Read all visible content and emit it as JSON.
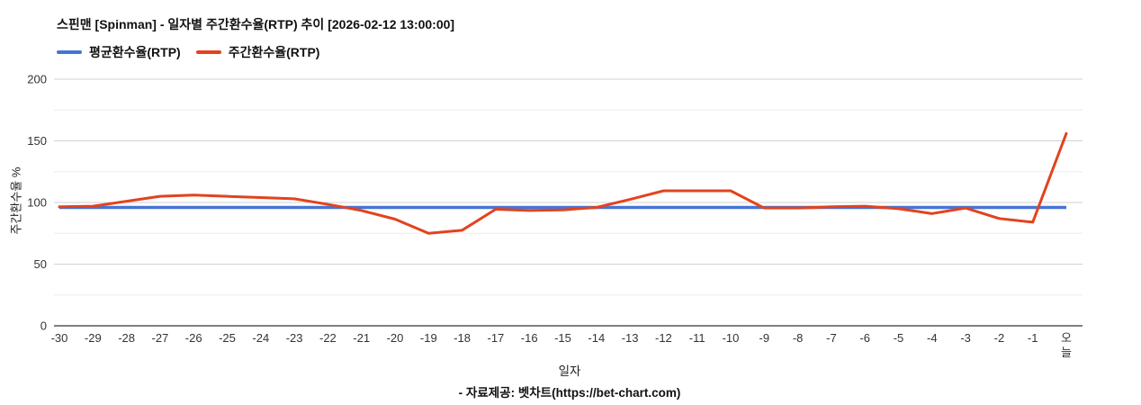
{
  "title": "스핀맨 [Spinman] - 일자별 주간환수율(RTP) 추이 [2026-02-12 13:00:00]",
  "legend": [
    {
      "label": "평균환수율(RTP)",
      "color": "#4575d4"
    },
    {
      "label": "주간환수율(RTP)",
      "color": "#e2431e"
    }
  ],
  "y_axis_title": "주간환수율 %",
  "x_axis_title": "일자",
  "footer": "- 자료제공: 벳차트(https://bet-chart.com)",
  "colors": {
    "average_line": "#4575d4",
    "weekly_line": "#e2431e",
    "grid_major": "#d2d2d2",
    "grid_minor": "#ececec",
    "axis_line": "#333333",
    "tick_text": "#333333"
  },
  "chart_data": {
    "type": "line",
    "title": "스핀맨 [Spinman] - 일자별 주간환수율(RTP) 추이 [2026-02-12 13:00:00]",
    "xlabel": "일자",
    "ylabel": "주간환수율 %",
    "ylim": [
      0,
      200
    ],
    "yticks_major": [
      0,
      50,
      100,
      150,
      200
    ],
    "yticks_minor": [
      25,
      75,
      125,
      175
    ],
    "grid": true,
    "legend_position": "top-left",
    "categories": [
      "-30",
      "-29",
      "-28",
      "-27",
      "-26",
      "-25",
      "-24",
      "-23",
      "-22",
      "-21",
      "-20",
      "-19",
      "-18",
      "-17",
      "-16",
      "-15",
      "-14",
      "-13",
      "-12",
      "-11",
      "-10",
      "-9",
      "-8",
      "-7",
      "-6",
      "-5",
      "-4",
      "-3",
      "-2",
      "-1",
      "오늘"
    ],
    "series": [
      {
        "name": "평균환수율(RTP)",
        "color": "#4575d4",
        "values": [
          96,
          96,
          96,
          96,
          96,
          96,
          96,
          96,
          96,
          96,
          96,
          96,
          96,
          96,
          96,
          96,
          96,
          96,
          96,
          96,
          96,
          96,
          96,
          96,
          96,
          96,
          96,
          96,
          96,
          96,
          96
        ]
      },
      {
        "name": "주간환수율(RTP)",
        "color": "#e2431e",
        "values": [
          96.5,
          97,
          101,
          105,
          106,
          105,
          104,
          103,
          98.5,
          93.5,
          86.5,
          75,
          77.5,
          94.5,
          93.5,
          94,
          96,
          102.5,
          109.5,
          109.5,
          109.5,
          95.5,
          95.5,
          96.5,
          97,
          95,
          91,
          95.5,
          87,
          84,
          156
        ]
      }
    ]
  }
}
